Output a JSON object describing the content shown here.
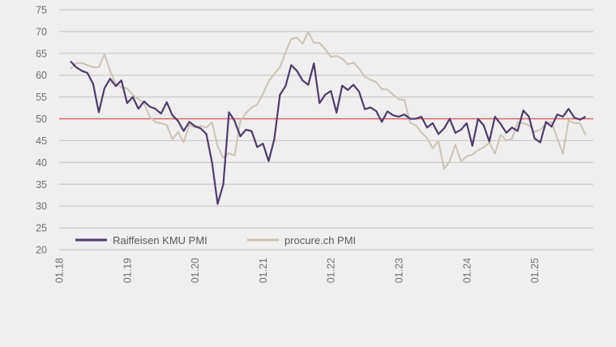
{
  "chart_data": {
    "type": "line",
    "title": "",
    "xlabel": "",
    "ylabel": "",
    "ylim": [
      20,
      75
    ],
    "yticks": [
      75,
      70,
      65,
      60,
      55,
      50,
      45,
      40,
      35,
      30,
      25,
      20
    ],
    "xtick_labels": [
      "01.18",
      "01.19",
      "01.20",
      "01.21",
      "01.22",
      "01.23",
      "01.24",
      "01.25"
    ],
    "x_start": "2018-03",
    "x_end": "2025-10",
    "frequency": "monthly",
    "grid": true,
    "reference_line": {
      "value": 50,
      "color": "#e2636b"
    },
    "legend": {
      "placement": "bottom-left"
    },
    "series": [
      {
        "name": "Raiffeisen KMU PMI",
        "color": "#4f3b6b",
        "values": [
          63.2,
          61.8,
          61.0,
          60.5,
          58.0,
          51.5,
          57.0,
          59.2,
          57.5,
          58.8,
          53.6,
          55.0,
          52.3,
          54.0,
          52.8,
          52.3,
          51.2,
          53.8,
          50.8,
          49.5,
          47.2,
          49.3,
          48.3,
          47.8,
          46.5,
          40.0,
          30.5,
          35.0,
          51.5,
          49.5,
          46.0,
          47.5,
          47.2,
          43.5,
          44.3,
          40.3,
          45.3,
          55.5,
          57.5,
          62.3,
          61.0,
          58.8,
          57.8,
          62.7,
          53.6,
          55.5,
          56.4,
          51.4,
          57.6,
          56.6,
          57.8,
          56.2,
          52.2,
          52.6,
          51.8,
          49.3,
          51.7,
          50.8,
          50.5,
          51.0,
          50.0,
          50.0,
          50.5,
          48.0,
          49.0,
          46.5,
          47.8,
          50.0,
          46.8,
          47.5,
          49.0,
          43.8,
          50.0,
          48.5,
          44.8,
          50.5,
          48.8,
          46.8,
          48.0,
          47.2,
          51.9,
          50.5,
          45.5,
          44.6,
          49.3,
          48.2,
          51.0,
          50.5,
          52.3,
          50.3,
          49.8,
          50.5
        ]
      },
      {
        "name": "procure.ch PMI",
        "color": "#cdc3b3",
        "values": [
          61.5,
          62.8,
          62.8,
          62.3,
          61.8,
          61.8,
          64.8,
          61.0,
          58.0,
          57.2,
          57.0,
          55.5,
          54.5,
          53.5,
          50.5,
          49.2,
          49.0,
          48.6,
          45.3,
          47.0,
          44.6,
          48.6,
          48.0,
          48.4,
          48.0,
          49.2,
          43.7,
          41.1,
          42.1,
          41.6,
          49.5,
          51.3,
          52.6,
          53.3,
          55.7,
          58.6,
          60.3,
          61.8,
          65.2,
          68.3,
          68.6,
          67.2,
          69.9,
          67.4,
          67.4,
          66.0,
          64.2,
          64.4,
          63.8,
          62.5,
          62.9,
          61.5,
          59.6,
          59.0,
          58.4,
          56.8,
          56.7,
          55.5,
          54.5,
          54.3,
          49.1,
          48.5,
          46.9,
          45.6,
          43.2,
          44.9,
          38.5,
          40.3,
          44.1,
          40.2,
          41.4,
          41.8,
          42.8,
          43.5,
          44.5,
          42.0,
          46.4,
          45.0,
          45.5,
          49.2,
          49.0,
          48.5,
          47.0,
          47.5,
          48.8,
          49.2,
          45.6,
          42.0,
          49.6,
          49.0,
          49.0,
          46.3
        ]
      }
    ]
  }
}
